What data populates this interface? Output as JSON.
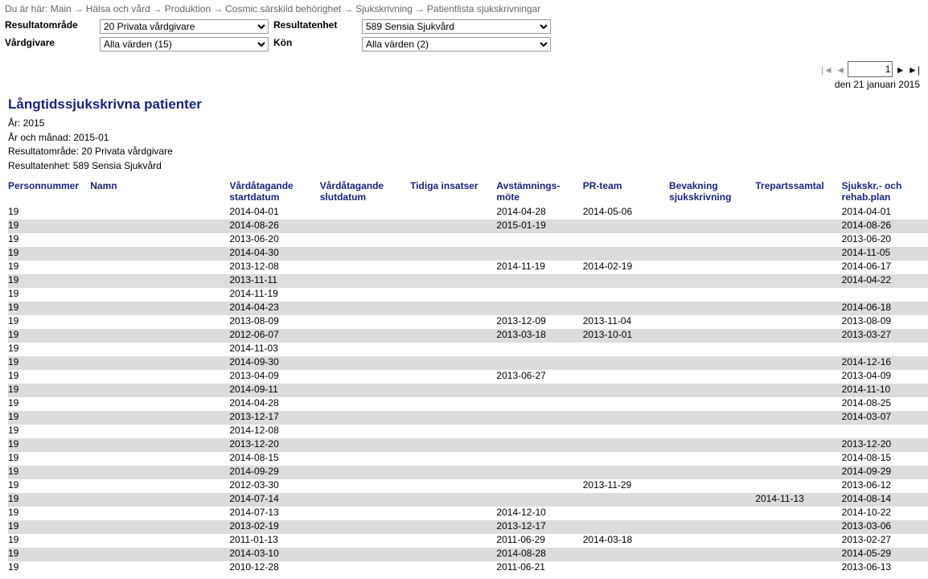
{
  "breadcrumb": {
    "prefix": "Du är här:",
    "items": [
      "Main",
      "Hälsa och vård",
      "Produktion",
      "Cosmic särskild behörighet",
      "Sjukskrivning",
      "Patientlista sjukskrivningar"
    ]
  },
  "filters": {
    "resultat_omrade_label": "Resultatområde",
    "resultat_omrade_value": "20 Privata vårdgivare",
    "resultat_enhet_label": "Resultatenhet",
    "resultat_enhet_value": "589 Sensia Sjukvård",
    "vardgivare_label": "Vårdgivare",
    "vardgivare_value": "Alla värden (15)",
    "kon_label": "Kön",
    "kon_value": "Alla värden (2)"
  },
  "pager": {
    "page": "1"
  },
  "date_line": "den 21 januari 2015",
  "report_title": "Långtidssjukskrivna patienter",
  "meta": {
    "ar": "År: 2015",
    "ar_manad": "År och månad: 2015-01",
    "resultat_omrade": "Resultatområde: 20 Privata vårdgivare",
    "resultat_enhet": "Resultatenhet: 589 Sensia Sjukvård"
  },
  "columns": {
    "personnummer": "Personnummer",
    "namn": "Namn",
    "start": "Vårdåtagande startdatum",
    "slut": "Vårdåtagande slutdatum",
    "tidiga": "Tidiga insatser",
    "avstam": "Avstämnings-möte",
    "pr": "PR-team",
    "bevak": "Bevakning sjukskrivning",
    "trepart": "Trepartssamtal",
    "sjuk": "Sjukskr.- och rehab.plan"
  },
  "rows": [
    {
      "pn": "19",
      "start": "2014-04-01",
      "avstam": "2014-04-28",
      "pr": "2014-05-06",
      "sjuk": "2014-04-01"
    },
    {
      "pn": "19",
      "start": "2014-08-26",
      "avstam": "2015-01-19",
      "sjuk": "2014-08-26"
    },
    {
      "pn": "19",
      "start": "2013-06-20",
      "sjuk": "2013-06-20"
    },
    {
      "pn": "19",
      "start": "2014-04-30",
      "sjuk": "2014-11-05"
    },
    {
      "pn": "19",
      "start": "2013-12-08",
      "avstam": "2014-11-19",
      "pr": "2014-02-19",
      "sjuk": "2014-06-17"
    },
    {
      "pn": "19",
      "start": "2013-11-11",
      "sjuk": "2014-04-22"
    },
    {
      "pn": "19",
      "start": "2014-11-19"
    },
    {
      "pn": "19",
      "start": "2014-04-23",
      "sjuk": "2014-06-18"
    },
    {
      "pn": "19",
      "start": "2013-08-09",
      "avstam": "2013-12-09",
      "pr": "2013-11-04",
      "sjuk": "2013-08-09"
    },
    {
      "pn": "19",
      "start": "2012-06-07",
      "avstam": "2013-03-18",
      "pr": "2013-10-01",
      "sjuk": "2013-03-27"
    },
    {
      "pn": "19",
      "start": "2014-11-03"
    },
    {
      "pn": "19",
      "start": "2014-09-30",
      "sjuk": "2014-12-16"
    },
    {
      "pn": "19",
      "start": "2013-04-09",
      "avstam": "2013-06-27",
      "sjuk": "2013-04-09"
    },
    {
      "pn": "19",
      "start": "2014-09-11",
      "sjuk": "2014-11-10"
    },
    {
      "pn": "19",
      "start": "2014-04-28",
      "sjuk": "2014-08-25"
    },
    {
      "pn": "19",
      "start": "2013-12-17",
      "sjuk": "2014-03-07"
    },
    {
      "pn": "19",
      "start": "2014-12-08"
    },
    {
      "pn": "19",
      "start": "2013-12-20",
      "sjuk": "2013-12-20"
    },
    {
      "pn": "19",
      "start": "2014-08-15",
      "sjuk": "2014-08-15"
    },
    {
      "pn": "19",
      "start": "2014-09-29",
      "sjuk": "2014-09-29"
    },
    {
      "pn": "19",
      "start": "2012-03-30",
      "pr": "2013-11-29",
      "sjuk": "2013-06-12"
    },
    {
      "pn": "19",
      "start": "2014-07-14",
      "trepart": "2014-11-13",
      "sjuk": "2014-08-14"
    },
    {
      "pn": "19",
      "start": "2014-07-13",
      "avstam": "2014-12-10",
      "sjuk": "2014-10-22"
    },
    {
      "pn": "19",
      "start": "2013-02-19",
      "avstam": "2013-12-17",
      "sjuk": "2013-03-06"
    },
    {
      "pn": "19",
      "start": "2011-01-13",
      "avstam": "2011-06-29",
      "pr": "2014-03-18",
      "sjuk": "2013-02-27"
    },
    {
      "pn": "19",
      "start": "2014-03-10",
      "avstam": "2014-08-28",
      "sjuk": "2014-05-29"
    },
    {
      "pn": "19",
      "start": "2010-12-28",
      "avstam": "2011-06-21",
      "sjuk": "2013-06-13"
    }
  ]
}
